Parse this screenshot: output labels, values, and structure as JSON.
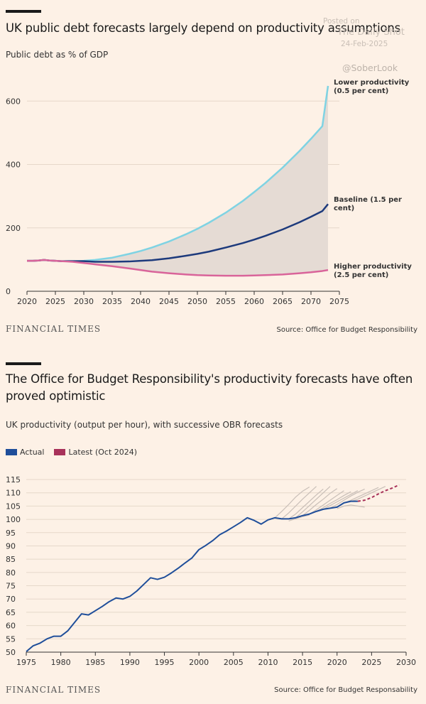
{
  "watermark": {
    "line1": "Posted on",
    "line2": "The Daily Shot",
    "line3": "24-Feb-2025",
    "handle": "@SoberLook"
  },
  "panel1": {
    "title": "UK public debt forecasts largely depend on productivity assumptions",
    "subtitle": "Public debt as % of GDP",
    "brand": "FINANCIAL TIMES",
    "source": "Source: Office for Budget Responsibility"
  },
  "panel2": {
    "title": "The Office for Budget Responsibility's productivity forecasts have often proved optimistic",
    "subtitle": "UK productivity (output per hour), with successive OBR forecasts",
    "brand": "FINANCIAL TIMES",
    "source": "Source: Office for Budget Responsability",
    "legend": [
      {
        "label": "Actual",
        "color": "#1f4e9a"
      },
      {
        "label": "Latest (Oct 2024)",
        "color": "#a8325a"
      }
    ]
  },
  "chart_data": [
    {
      "type": "area",
      "title": "UK public debt forecasts largely depend on productivity assumptions",
      "ylabel": "Public debt as % of GDP",
      "xlim": [
        2020,
        2075
      ],
      "ylim": [
        0,
        650
      ],
      "xticks": [
        2020,
        2025,
        2030,
        2035,
        2040,
        2045,
        2050,
        2055,
        2060,
        2065,
        2070,
        2075
      ],
      "yticks": [
        0,
        200,
        400,
        600
      ],
      "grid": "horizontal",
      "x": [
        2020,
        2021,
        2022,
        2023,
        2024,
        2025,
        2026,
        2027,
        2028,
        2029,
        2030,
        2032,
        2035,
        2038,
        2040,
        2042,
        2045,
        2048,
        2050,
        2052,
        2055,
        2058,
        2060,
        2062,
        2065,
        2068,
        2070,
        2072,
        2073
      ],
      "series": [
        {
          "name": "Lower productivity (0.5 per cent)",
          "color": "#7fd3e3",
          "label_lines": [
            "Lower productivity",
            "(0.5 per cent)"
          ],
          "values": [
            96,
            96,
            97,
            99,
            97,
            96,
            95,
            95,
            95,
            95,
            96,
            99,
            106,
            118,
            127,
            138,
            157,
            180,
            197,
            216,
            248,
            285,
            313,
            342,
            390,
            443,
            481,
            521,
            648
          ]
        },
        {
          "name": "Baseline (1.5 per cent)",
          "color": "#1d3a7c",
          "label_lines": [
            "Baseline (1.5 per",
            "cent)"
          ],
          "values": [
            96,
            96,
            97,
            99,
            97,
            96,
            95,
            95,
            95,
            95,
            95,
            93,
            93,
            94,
            96,
            98,
            104,
            112,
            118,
            125,
            138,
            152,
            163,
            175,
            195,
            218,
            235,
            253,
            275
          ]
        },
        {
          "name": "Higher productivity (2.5 per cent)",
          "color": "#d9649a",
          "label_lines": [
            "Higher productivity",
            "(2.5 per cent)"
          ],
          "values": [
            96,
            96,
            97,
            99,
            97,
            96,
            95,
            94,
            93,
            91,
            89,
            85,
            79,
            72,
            67,
            62,
            57,
            53,
            51,
            50,
            49,
            49,
            50,
            51,
            53,
            57,
            60,
            64,
            67
          ]
        }
      ],
      "annotations": [
        "Lower productivity (0.5 per cent)",
        "Baseline (1.5 per cent)",
        "Higher productivity (2.5 per cent)"
      ]
    },
    {
      "type": "line",
      "title": "The Office for Budget Responsibility's productivity forecasts have often proved optimistic",
      "ylabel": "UK productivity (output per hour), with successive OBR forecasts",
      "xlim": [
        1975,
        2030
      ],
      "ylim": [
        50,
        115
      ],
      "xticks": [
        1975,
        1980,
        1985,
        1990,
        1995,
        2000,
        2005,
        2010,
        2015,
        2020,
        2025,
        2030
      ],
      "yticks": [
        50,
        55,
        60,
        65,
        70,
        75,
        80,
        85,
        90,
        95,
        100,
        105,
        110,
        115
      ],
      "grid": "horizontal",
      "legend": "top-left",
      "series": [
        {
          "name": "Actual",
          "color": "#1f4e9a",
          "x": [
            1975,
            1976,
            1977,
            1978,
            1979,
            1980,
            1981,
            1982,
            1983,
            1984,
            1985,
            1986,
            1987,
            1988,
            1989,
            1990,
            1991,
            1992,
            1993,
            1994,
            1995,
            1996,
            1997,
            1998,
            1999,
            2000,
            2001,
            2002,
            2003,
            2004,
            2005,
            2006,
            2007,
            2008,
            2009,
            2010,
            2011,
            2012,
            2013,
            2014,
            2015,
            2016,
            2017,
            2018,
            2019,
            2020,
            2021,
            2022,
            2023
          ],
          "values": [
            50.2,
            52.4,
            53.4,
            55.0,
            56.0,
            56.0,
            58.0,
            61.2,
            64.4,
            64.0,
            65.6,
            67.2,
            69.0,
            70.4,
            70.0,
            71.0,
            73.0,
            75.5,
            78.0,
            77.4,
            78.2,
            79.8,
            81.6,
            83.6,
            85.5,
            88.6,
            90.2,
            92.0,
            94.2,
            95.6,
            97.2,
            98.8,
            100.6,
            99.6,
            98.2,
            99.8,
            100.6,
            100.2,
            100.2,
            100.6,
            101.4,
            102.0,
            103.0,
            103.8,
            104.2,
            104.6,
            106.2,
            106.8,
            106.8
          ]
        },
        {
          "name": "Latest (Oct 2024)",
          "color": "#a8325a",
          "dashed": true,
          "x": [
            2023,
            2024,
            2025,
            2026,
            2027,
            2028,
            2029
          ],
          "values": [
            106.8,
            107.2,
            108.2,
            109.6,
            110.8,
            111.8,
            113.0
          ]
        }
      ],
      "forecasts": [
        {
          "x": [
            2011,
            2012,
            2013,
            2014,
            2015,
            2016
          ],
          "values": [
            100.6,
            103.0,
            105.6,
            108.4,
            110.6,
            112.2
          ]
        },
        {
          "x": [
            2012,
            2013,
            2014,
            2015,
            2016,
            2017
          ],
          "values": [
            100.2,
            102.4,
            105.0,
            107.6,
            110.0,
            112.4
          ]
        },
        {
          "x": [
            2013,
            2014,
            2015,
            2016,
            2017,
            2018
          ],
          "values": [
            100.2,
            102.0,
            104.4,
            106.8,
            109.2,
            111.4
          ]
        },
        {
          "x": [
            2014,
            2015,
            2016,
            2017,
            2018,
            2019
          ],
          "values": [
            100.6,
            102.8,
            105.2,
            107.6,
            110.0,
            112.4
          ]
        },
        {
          "x": [
            2015,
            2016,
            2017,
            2018,
            2019,
            2020
          ],
          "values": [
            101.4,
            103.4,
            105.6,
            107.6,
            109.8,
            111.6
          ]
        },
        {
          "x": [
            2016,
            2017,
            2018,
            2019,
            2020,
            2021
          ],
          "values": [
            102.0,
            103.6,
            105.4,
            107.2,
            109.0,
            110.8
          ]
        },
        {
          "x": [
            2017,
            2018,
            2019,
            2020,
            2021,
            2022
          ],
          "values": [
            103.0,
            104.4,
            106.0,
            107.4,
            109.0,
            110.4
          ]
        },
        {
          "x": [
            2018,
            2019,
            2020,
            2021,
            2022,
            2023
          ],
          "values": [
            103.8,
            105.2,
            106.6,
            108.0,
            109.4,
            110.8
          ]
        },
        {
          "x": [
            2019,
            2020,
            2021,
            2022,
            2023,
            2024
          ],
          "values": [
            104.2,
            105.6,
            107.2,
            108.8,
            110.2,
            111.4
          ]
        },
        {
          "x": [
            2021,
            2022,
            2023,
            2024,
            2025,
            2026
          ],
          "values": [
            106.2,
            107.2,
            108.4,
            109.6,
            110.8,
            112.0
          ]
        },
        {
          "x": [
            2022,
            2023,
            2024,
            2025,
            2026,
            2027
          ],
          "values": [
            106.8,
            107.6,
            108.8,
            110.0,
            111.2,
            112.4
          ]
        },
        {
          "x": [
            2013,
            2014,
            2015,
            2016
          ],
          "values": [
            99.4,
            100.2,
            101.0,
            101.6
          ]
        },
        {
          "x": [
            2020,
            2021,
            2022,
            2023,
            2024
          ],
          "values": [
            104.0,
            105.0,
            105.4,
            105.0,
            104.6
          ]
        }
      ]
    }
  ]
}
